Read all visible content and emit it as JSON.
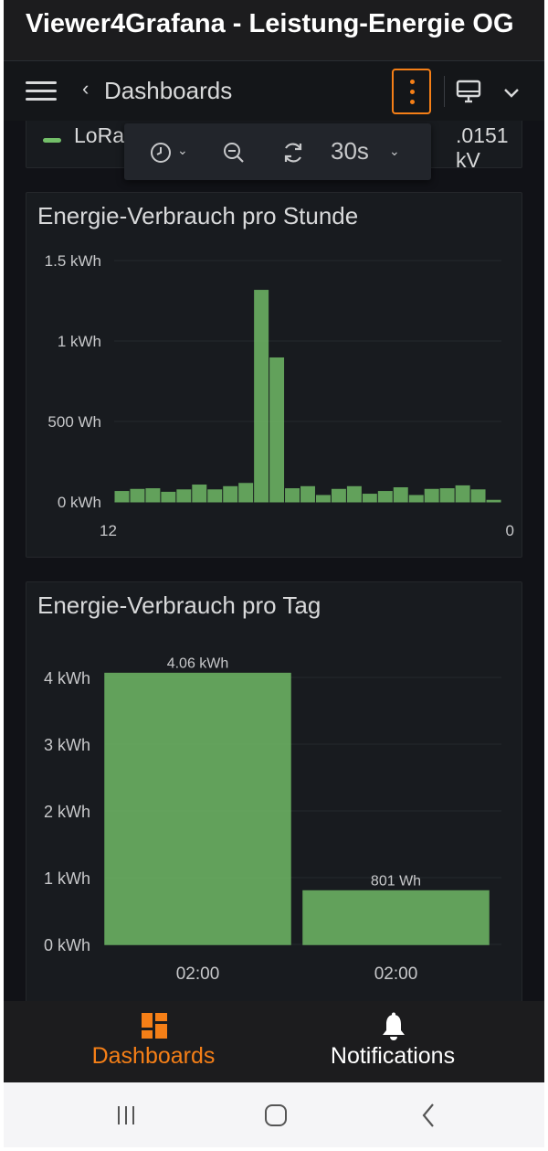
{
  "app": {
    "title": "Viewer4Grafana - Leistung-Energie OG"
  },
  "nav": {
    "back_label": "Dashboards"
  },
  "stat_row": {
    "legend_label": "LoRa",
    "value_partial": ".0151 kV"
  },
  "time_toolbar": {
    "refresh_interval": "30s"
  },
  "colors": {
    "accent": "#f57f17",
    "bar": "#73bf69",
    "panel_bg": "#181b1f",
    "page_bg": "#111217"
  },
  "panels": [
    {
      "title": "Energie-Verbrauch pro Stunde",
      "chart_data": {
        "type": "bar",
        "ylim": [
          0,
          1500
        ],
        "y_ticks": [
          "1.5 kWh",
          "1 kWh",
          "500 Wh",
          "0 kWh"
        ],
        "x_tick_label_first": "12",
        "x_tick_label_last": "0",
        "values": [
          65,
          78,
          82,
          60,
          75,
          105,
          75,
          95,
          115,
          1315,
          895,
          82,
          95,
          40,
          78,
          95,
          48,
          65,
          88,
          40,
          78,
          82,
          100,
          75,
          10
        ],
        "grid": true
      }
    },
    {
      "title": "Energie-Verbrauch pro Tag",
      "chart_data": {
        "type": "bar",
        "categories": [
          "02:00",
          "02:00"
        ],
        "values": [
          4.06,
          0.801
        ],
        "value_labels": [
          "4.06 kWh",
          "801 Wh"
        ],
        "y_ticks": [
          "4 kWh",
          "3 kWh",
          "2 kWh",
          "1 kWh",
          "0 kWh"
        ],
        "ylim": [
          0,
          4
        ],
        "grid": true
      }
    }
  ],
  "bottom_nav": {
    "dashboards_label": "Dashboards",
    "notifications_label": "Notifications"
  }
}
